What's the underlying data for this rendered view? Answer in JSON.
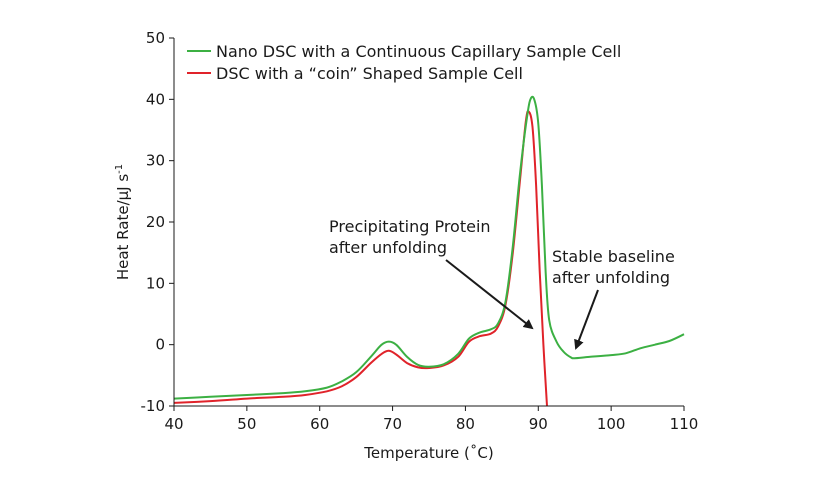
{
  "chart_data": {
    "type": "line",
    "xlabel": "Temperature (˚C)",
    "ylabel": "Heat Rate/µJ s",
    "ylabel_sup": "-1",
    "xlim": [
      40,
      110
    ],
    "ylim": [
      -10,
      50
    ],
    "xticks": [
      "40",
      "50",
      "60",
      "70",
      "80",
      "90",
      "100",
      "110"
    ],
    "yticks": [
      "-10",
      "0",
      "10",
      "20",
      "30",
      "40",
      "50"
    ],
    "grid": false,
    "legend_position": "top-left",
    "series": [
      {
        "name": "Nano DSC with a Continuous Capillary Sample Cell",
        "color": "#3cb043",
        "points": [
          [
            40,
            -8.8
          ],
          [
            45,
            -8.5
          ],
          [
            50,
            -8.2
          ],
          [
            55,
            -7.9
          ],
          [
            58,
            -7.6
          ],
          [
            61,
            -7.0
          ],
          [
            63,
            -6.0
          ],
          [
            65,
            -4.5
          ],
          [
            67,
            -2.0
          ],
          [
            68.5,
            0.0
          ],
          [
            69.5,
            0.5
          ],
          [
            70.5,
            0.0
          ],
          [
            72,
            -2.0
          ],
          [
            73.5,
            -3.3
          ],
          [
            75,
            -3.6
          ],
          [
            77,
            -3.2
          ],
          [
            79,
            -1.5
          ],
          [
            80.5,
            1.0
          ],
          [
            82,
            2.0
          ],
          [
            83.5,
            2.5
          ],
          [
            84.5,
            3.5
          ],
          [
            85.5,
            7.0
          ],
          [
            86.5,
            16.0
          ],
          [
            87.5,
            28.0
          ],
          [
            88.5,
            37.5
          ],
          [
            89,
            40.2
          ],
          [
            89.5,
            39.8
          ],
          [
            90,
            36.0
          ],
          [
            90.5,
            26.0
          ],
          [
            91,
            12.0
          ],
          [
            91.5,
            4.0
          ],
          [
            92.5,
            0.5
          ],
          [
            93.5,
            -1.2
          ],
          [
            94.5,
            -2.1
          ],
          [
            95,
            -2.2
          ],
          [
            97,
            -2.0
          ],
          [
            100,
            -1.7
          ],
          [
            102,
            -1.4
          ],
          [
            104,
            -0.6
          ],
          [
            106,
            0.0
          ],
          [
            108,
            0.6
          ],
          [
            110,
            1.7
          ]
        ]
      },
      {
        "name": "DSC with a “coin” Shaped Sample Cell",
        "color": "#e0232a",
        "points": [
          [
            40,
            -9.5
          ],
          [
            45,
            -9.2
          ],
          [
            50,
            -8.8
          ],
          [
            55,
            -8.5
          ],
          [
            58,
            -8.2
          ],
          [
            61,
            -7.6
          ],
          [
            63,
            -6.8
          ],
          [
            65,
            -5.3
          ],
          [
            67,
            -3.0
          ],
          [
            68.5,
            -1.5
          ],
          [
            69.5,
            -1.0
          ],
          [
            70.5,
            -1.6
          ],
          [
            72,
            -3.0
          ],
          [
            73.5,
            -3.7
          ],
          [
            75,
            -3.8
          ],
          [
            77,
            -3.4
          ],
          [
            79,
            -2.0
          ],
          [
            80.5,
            0.5
          ],
          [
            82,
            1.4
          ],
          [
            83.5,
            1.8
          ],
          [
            84.5,
            3.0
          ],
          [
            85.5,
            6.5
          ],
          [
            86.5,
            15.0
          ],
          [
            87.5,
            27.0
          ],
          [
            88.3,
            36.5
          ],
          [
            88.7,
            38.0
          ],
          [
            89.2,
            35.5
          ],
          [
            89.7,
            26.0
          ],
          [
            90.2,
            12.0
          ],
          [
            90.7,
            0.0
          ],
          [
            91.2,
            -10.0
          ]
        ]
      }
    ],
    "annotations": [
      {
        "lines": [
          "Precipitating Protein",
          "after unfolding"
        ],
        "arrow_to": [
          90.7,
          -1.0
        ]
      },
      {
        "lines": [
          "Stable baseline",
          "after unfolding"
        ],
        "arrow_to": [
          94.5,
          -1.0
        ]
      }
    ]
  }
}
